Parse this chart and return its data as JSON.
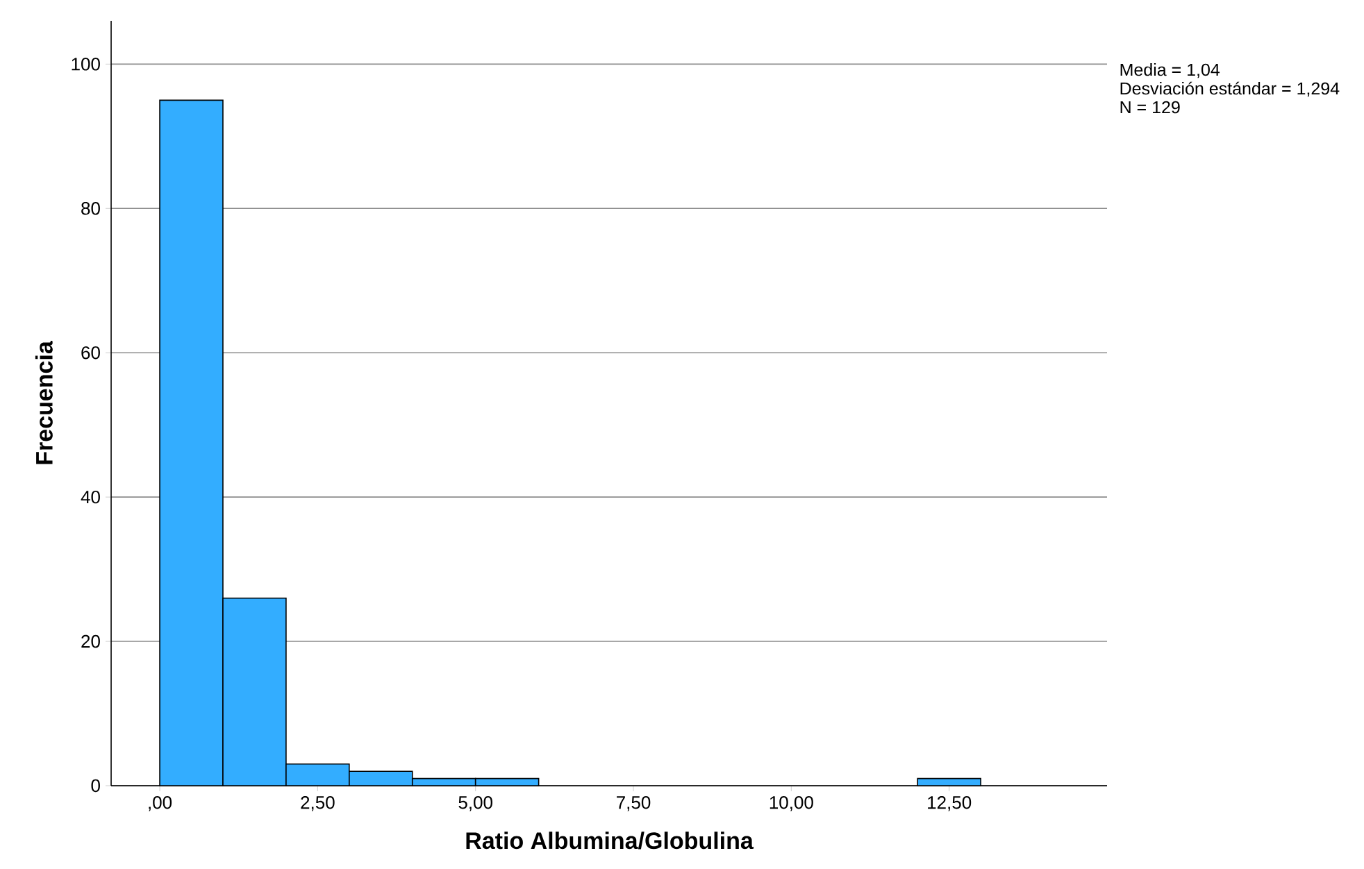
{
  "chart_data": {
    "type": "histogram",
    "xlabel": "Ratio Albumina/Globulina",
    "ylabel": "Frecuencia",
    "bins": [
      0,
      1,
      2,
      3,
      4,
      5,
      6,
      7,
      8,
      9,
      10,
      11,
      12,
      13
    ],
    "values": [
      95,
      26,
      3,
      2,
      1,
      1,
      0,
      0,
      0,
      0,
      0,
      0,
      1
    ],
    "color": "#33adff",
    "xlim": [
      -0.77,
      15
    ],
    "ylim": [
      0,
      106
    ],
    "xticks": [
      {
        "value": 0,
        "label": ",00"
      },
      {
        "value": 2.5,
        "label": "2,50"
      },
      {
        "value": 5,
        "label": "5,00"
      },
      {
        "value": 7.5,
        "label": "7,50"
      },
      {
        "value": 10,
        "label": "10,00"
      },
      {
        "value": 12.5,
        "label": "12,50"
      }
    ],
    "yticks": [
      0,
      20,
      40,
      60,
      80,
      100
    ],
    "grid": "y",
    "annotations": [
      "Media = 1,04",
      "Desviación estándar = 1,294",
      "N = 129"
    ]
  }
}
